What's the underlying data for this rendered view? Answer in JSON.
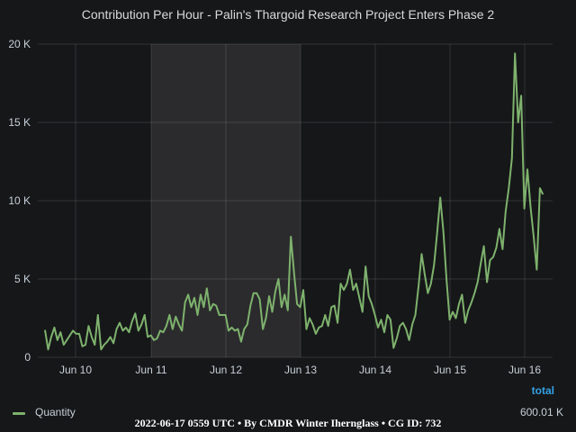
{
  "title": "Contribution Per Hour - Palin's Thargoid Research Project Enters Phase 2",
  "legend": {
    "header": "total",
    "series_name": "Quantity",
    "series_color": "#7eb26d",
    "total": "600.01 K"
  },
  "footer": "2022-06-17 0559 UTC • By CMDR Winter Ihernglass • CG ID: 732",
  "chart_data": {
    "type": "line",
    "title": "Contribution Per Hour - Palin's Thargoid Research Project Enters Phase 2",
    "xlabel": "",
    "ylabel": "",
    "x_start": "Jun 9 ~16:00",
    "x_interval": "1 hour",
    "x_ticks": [
      "Jun 10",
      "Jun 11",
      "Jun 12",
      "Jun 13",
      "Jun 14",
      "Jun 15",
      "Jun 16"
    ],
    "y_ticks": [
      "0",
      "5 K",
      "10 K",
      "15 K",
      "20 K"
    ],
    "ylim": [
      0,
      20000
    ],
    "grid": true,
    "shaded_region": [
      "Jun 11",
      "Jun 13"
    ],
    "series": [
      {
        "name": "Quantity",
        "color": "#7eb26d",
        "values": [
          1750,
          500,
          1300,
          1900,
          1100,
          1600,
          800,
          1100,
          1400,
          1700,
          1500,
          1500,
          700,
          800,
          2000,
          1300,
          800,
          2700,
          500,
          800,
          1000,
          1300,
          900,
          1800,
          2200,
          1700,
          1900,
          1600,
          2300,
          2800,
          1700,
          2100,
          2700,
          1300,
          1400,
          1100,
          1200,
          1700,
          1600,
          2000,
          2700,
          1800,
          2600,
          2100,
          1700,
          3500,
          4000,
          3200,
          3800,
          2700,
          4000,
          3200,
          4400,
          3000,
          3400,
          3300,
          2700,
          2700,
          2700,
          1700,
          1900,
          1700,
          1800,
          1000,
          1800,
          2100,
          3300,
          4100,
          4100,
          3700,
          1800,
          2500,
          3900,
          2900,
          4200,
          5000,
          3200,
          4000,
          3000,
          7700,
          5400,
          3400,
          3200,
          4300,
          1800,
          2500,
          2100,
          1500,
          1900,
          2000,
          2700,
          2000,
          3200,
          3300,
          2200,
          4700,
          4300,
          4700,
          5600,
          4300,
          4700,
          3800,
          2900,
          5800,
          3900,
          3400,
          2700,
          1900,
          2400,
          1600,
          2700,
          2400,
          600,
          1200,
          2000,
          2200,
          1800,
          1100,
          2100,
          2700,
          4500,
          6600,
          5300,
          4100,
          4700,
          5900,
          8000,
          10200,
          8000,
          5000,
          2400,
          2900,
          2500,
          3400,
          4000,
          2200,
          3000,
          3500,
          4100,
          4800,
          6000,
          7100,
          4800,
          6200,
          6400,
          7000,
          8200,
          6900,
          9300,
          10800,
          12700,
          19400,
          15000,
          16700,
          9500,
          12000,
          9600,
          7700,
          5600,
          10800,
          10400
        ]
      }
    ]
  }
}
